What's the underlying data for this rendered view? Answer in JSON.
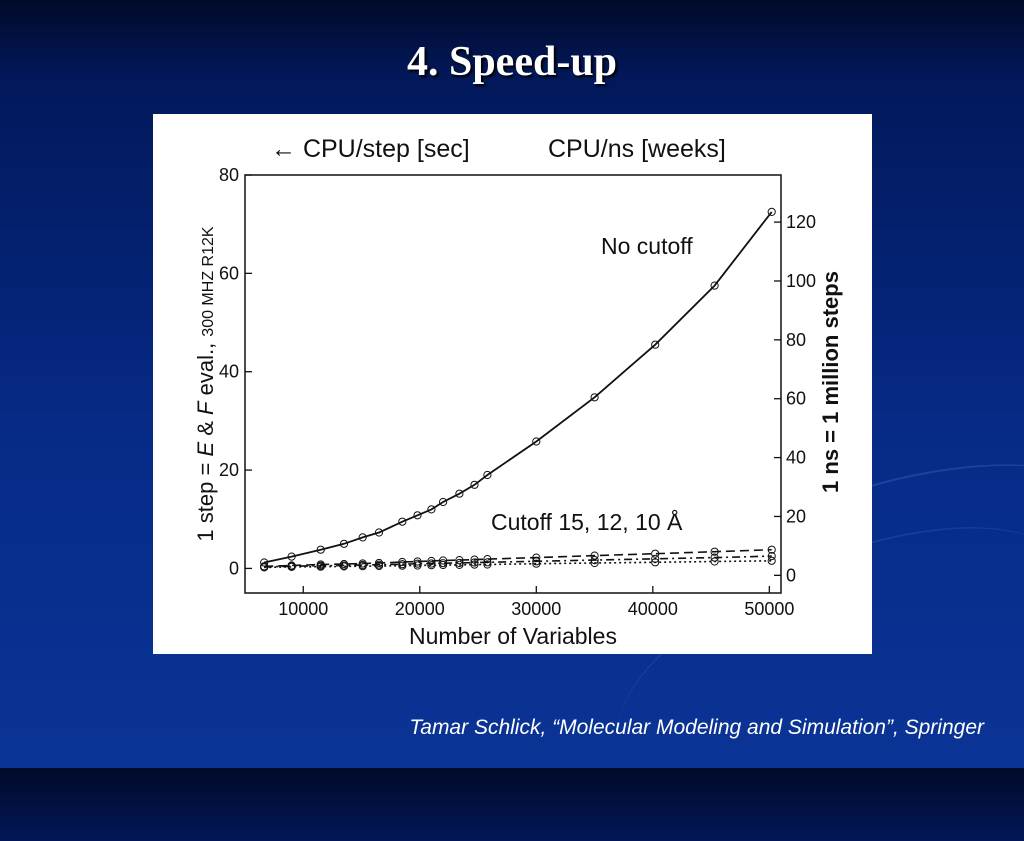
{
  "slide": {
    "title": "4. Speed-up",
    "citation": "Tamar Schlick, “Molecular Modeling and Simulation”, Springer"
  },
  "colors": {
    "background_top": "#010a2a",
    "background_bottom": "#0a3496",
    "text": "#ffffff",
    "plot_ink": "#111111"
  },
  "chart_data": {
    "type": "line",
    "title": "",
    "top_labels": {
      "left": "← CPU/step [sec]",
      "right": "CPU/ns [weeks]"
    },
    "xlabel": "Number of Variables",
    "ylabel_left_prefix": "1 step = ",
    "ylabel_left_italic1": "E",
    "ylabel_left_amp": " & ",
    "ylabel_left_italic2": "F",
    "ylabel_left_suffix": " eval., ",
    "ylabel_left_small": "300 MHZ R12K",
    "ylabel_right": "1 ns = 1 million steps",
    "xlim": [
      5000,
      51000
    ],
    "ylim": [
      -5,
      80
    ],
    "y2lim": [
      -6,
      136
    ],
    "xticks": [
      10000,
      20000,
      30000,
      40000,
      50000
    ],
    "xtick_labels": [
      "10000",
      "20000",
      "30000",
      "40000",
      "50000"
    ],
    "yticks": [
      0,
      20,
      40,
      60,
      80
    ],
    "ytick_labels": [
      "0",
      "20",
      "40",
      "60",
      "80"
    ],
    "y2ticks": [
      0,
      20,
      40,
      60,
      80,
      100,
      120
    ],
    "y2tick_labels": [
      "0",
      "20",
      "40",
      "60",
      "80",
      "100",
      "120"
    ],
    "annotations": {
      "no_cutoff": "No cutoff",
      "cutoff": "Cutoff 15, 12, 10 Å"
    },
    "series": [
      {
        "style": "solid",
        "x": [
          6650,
          9000,
          11500,
          13500,
          15100,
          16500,
          18500,
          19800,
          21000,
          22000,
          23400,
          24700,
          25800,
          30000,
          35000,
          40200,
          45300,
          50200
        ],
        "values": [
          1.2,
          2.4,
          3.8,
          5.0,
          6.3,
          7.3,
          9.5,
          10.8,
          12.0,
          13.5,
          15.2,
          17.0,
          19.0,
          25.8,
          34.8,
          45.5,
          57.5,
          72.5
        ]
      },
      {
        "style": "dashed",
        "x": [
          6650,
          9000,
          11500,
          13500,
          15100,
          16500,
          18500,
          19800,
          21000,
          22000,
          23400,
          24700,
          25800,
          30000,
          35000,
          40200,
          45300,
          50200
        ],
        "values": [
          0.4,
          0.6,
          0.8,
          0.9,
          1.0,
          1.1,
          1.3,
          1.4,
          1.5,
          1.6,
          1.7,
          1.8,
          1.9,
          2.2,
          2.6,
          3.0,
          3.4,
          3.8
        ]
      },
      {
        "style": "dash-dot",
        "x": [
          6650,
          9000,
          11500,
          13500,
          15100,
          16500,
          18500,
          19800,
          21000,
          22000,
          23400,
          24700,
          25800,
          30000,
          35000,
          40200,
          45300,
          50200
        ],
        "values": [
          0.3,
          0.45,
          0.55,
          0.6,
          0.7,
          0.75,
          0.85,
          0.95,
          1.0,
          1.05,
          1.1,
          1.2,
          1.25,
          1.45,
          1.7,
          1.95,
          2.2,
          2.5
        ]
      },
      {
        "style": "dotted",
        "x": [
          6650,
          9000,
          11500,
          13500,
          15100,
          16500,
          18500,
          19800,
          21000,
          22000,
          23400,
          24700,
          25800,
          30000,
          35000,
          40200,
          45300,
          50200
        ],
        "values": [
          0.2,
          0.3,
          0.35,
          0.4,
          0.45,
          0.5,
          0.55,
          0.6,
          0.65,
          0.7,
          0.72,
          0.78,
          0.8,
          0.95,
          1.1,
          1.25,
          1.4,
          1.55
        ]
      }
    ]
  }
}
